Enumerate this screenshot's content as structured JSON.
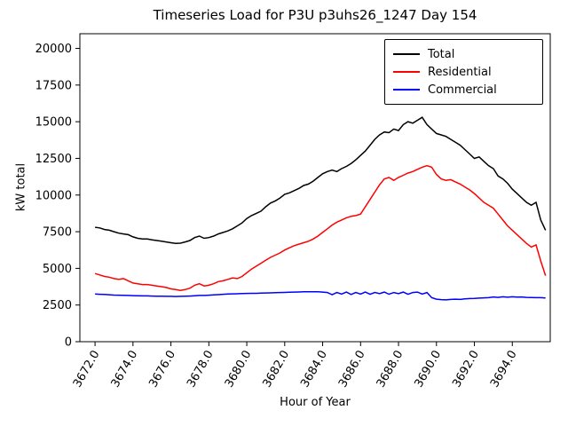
{
  "chart_data": {
    "type": "line",
    "title": "Timeseries Load for P3U p3uhs26_1247  Day 154",
    "xlabel": "Hour of Year",
    "ylabel": "kW total",
    "grid": false,
    "legend_position": "upper right",
    "xlim": [
      3671.2,
      3696.0
    ],
    "ylim": [
      0,
      21000
    ],
    "x_start": 3672.0,
    "x_step": 0.25,
    "x_ticks": [
      3672,
      3674,
      3676,
      3678,
      3680,
      3682,
      3684,
      3686,
      3688,
      3690,
      3692,
      3694
    ],
    "y_ticks": [
      0,
      2500,
      5000,
      7500,
      10000,
      12500,
      15000,
      17500,
      20000
    ],
    "series": [
      {
        "name": "Total",
        "color": "#000000",
        "values": [
          7800,
          7760,
          7650,
          7600,
          7500,
          7400,
          7350,
          7300,
          7150,
          7050,
          7000,
          7000,
          6950,
          6900,
          6850,
          6800,
          6750,
          6700,
          6720,
          6800,
          6900,
          7100,
          7200,
          7050,
          7100,
          7200,
          7350,
          7450,
          7550,
          7700,
          7900,
          8100,
          8400,
          8600,
          8750,
          8900,
          9200,
          9450,
          9600,
          9800,
          10050,
          10150,
          10300,
          10450,
          10650,
          10750,
          10950,
          11200,
          11450,
          11600,
          11700,
          11600,
          11800,
          11950,
          12150,
          12400,
          12700,
          13000,
          13400,
          13800,
          14100,
          14300,
          14250,
          14500,
          14400,
          14800,
          15000,
          14900,
          15100,
          15300,
          14800,
          14500,
          14200,
          14100,
          14000,
          13800,
          13600,
          13400,
          13100,
          12800,
          12500,
          12600,
          12300,
          12000,
          11800,
          11300,
          11100,
          10800,
          10400,
          10100,
          9800,
          9500,
          9300,
          9500,
          8300,
          7600
        ]
      },
      {
        "name": "Residential",
        "color": "#ff0000",
        "values": [
          4650,
          4550,
          4450,
          4400,
          4300,
          4250,
          4300,
          4150,
          4000,
          3950,
          3900,
          3900,
          3850,
          3800,
          3750,
          3700,
          3600,
          3550,
          3500,
          3550,
          3650,
          3850,
          3950,
          3800,
          3850,
          3950,
          4100,
          4150,
          4250,
          4350,
          4300,
          4450,
          4700,
          4950,
          5150,
          5350,
          5550,
          5750,
          5900,
          6050,
          6250,
          6400,
          6550,
          6650,
          6750,
          6850,
          7000,
          7200,
          7450,
          7700,
          7950,
          8150,
          8300,
          8450,
          8550,
          8600,
          8700,
          9200,
          9700,
          10200,
          10700,
          11100,
          11200,
          11000,
          11200,
          11350,
          11500,
          11600,
          11750,
          11900,
          12000,
          11900,
          11400,
          11100,
          11000,
          11050,
          10900,
          10750,
          10550,
          10350,
          10100,
          9800,
          9500,
          9300,
          9100,
          8700,
          8300,
          7900,
          7600,
          7300,
          7000,
          6700,
          6450,
          6600,
          5500,
          4500
        ]
      },
      {
        "name": "Commercial",
        "color": "#0000ff",
        "values": [
          3250,
          3230,
          3220,
          3200,
          3180,
          3170,
          3160,
          3150,
          3140,
          3130,
          3120,
          3120,
          3110,
          3100,
          3100,
          3090,
          3090,
          3080,
          3090,
          3100,
          3110,
          3130,
          3150,
          3150,
          3170,
          3190,
          3210,
          3230,
          3250,
          3260,
          3270,
          3280,
          3290,
          3300,
          3300,
          3310,
          3320,
          3330,
          3340,
          3350,
          3360,
          3370,
          3380,
          3390,
          3400,
          3400,
          3410,
          3400,
          3380,
          3350,
          3200,
          3350,
          3250,
          3380,
          3220,
          3360,
          3250,
          3380,
          3230,
          3360,
          3280,
          3380,
          3240,
          3350,
          3280,
          3380,
          3230,
          3350,
          3380,
          3250,
          3350,
          3000,
          2900,
          2870,
          2850,
          2880,
          2900,
          2880,
          2920,
          2940,
          2950,
          2970,
          2990,
          3000,
          3050,
          3020,
          3060,
          3030,
          3060,
          3040,
          3050,
          3020,
          3010,
          3000,
          3000,
          2980
        ]
      }
    ]
  }
}
